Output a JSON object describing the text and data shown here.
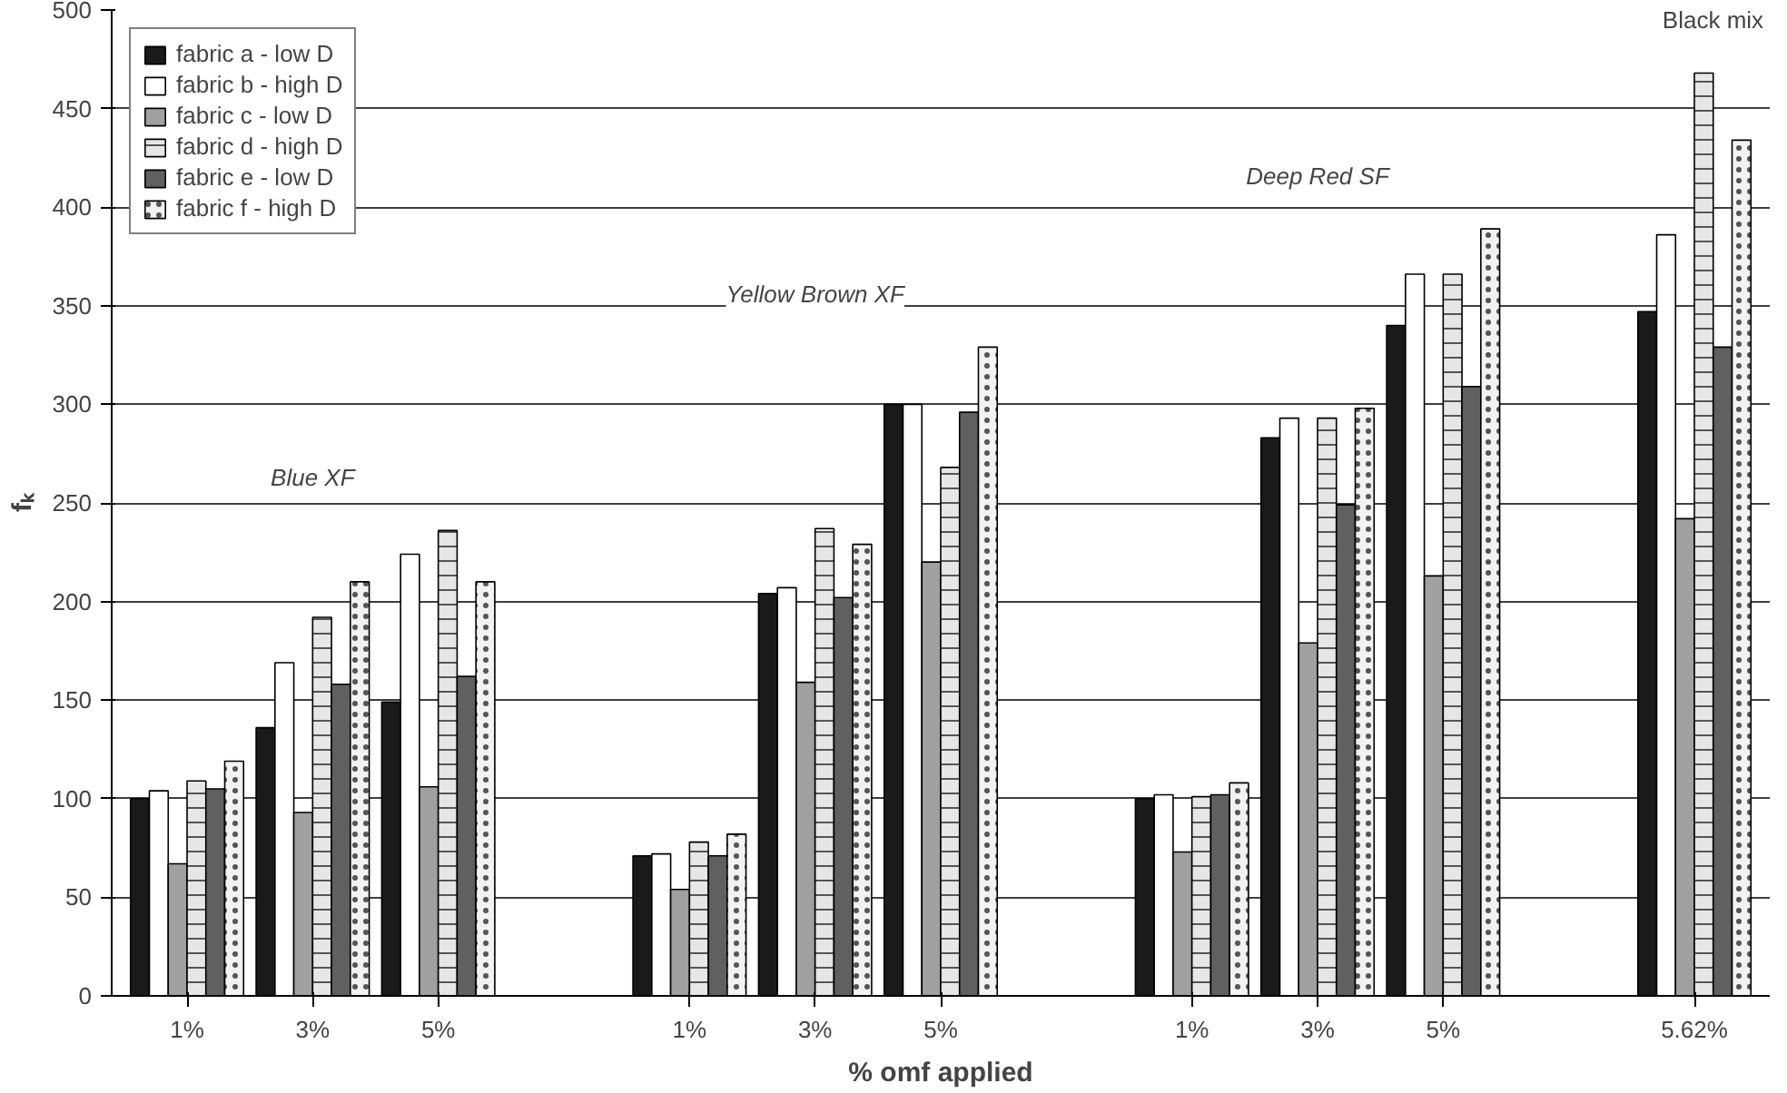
{
  "chart_data": {
    "type": "bar",
    "xlabel": "% omf applied",
    "ylabel": "fₖ",
    "categories": [
      "1%",
      "3%",
      "5%",
      null,
      "1%",
      "3%",
      "5%",
      null,
      "1%",
      "3%",
      "5%",
      null,
      "5.62%"
    ],
    "series": [
      {
        "name": "fabric a - low D",
        "color": "#1a1a1a",
        "values": [
          100,
          136,
          149,
          null,
          71,
          204,
          300,
          null,
          100,
          283,
          340,
          null,
          347
        ]
      },
      {
        "name": "fabric b - high D",
        "color": "#ffffff",
        "values": [
          104,
          169,
          224,
          null,
          72,
          207,
          300,
          null,
          102,
          293,
          366,
          null,
          386
        ]
      },
      {
        "name": "fabric c - low D",
        "color": "#a0a0a0",
        "values": [
          67,
          93,
          106,
          null,
          54,
          159,
          220,
          null,
          73,
          179,
          213,
          null,
          242
        ]
      },
      {
        "name": "fabric d - high D",
        "color": "#e6e6e6",
        "values": [
          109,
          192,
          236,
          null,
          78,
          237,
          268,
          null,
          101,
          293,
          366,
          null,
          468
        ]
      },
      {
        "name": "fabric e - low D",
        "color": "#606060",
        "values": [
          105,
          158,
          162,
          null,
          71,
          202,
          296,
          null,
          102,
          249,
          309,
          null,
          329
        ]
      },
      {
        "name": "fabric f - high D",
        "color": "#f2f2f2",
        "values": [
          119,
          210,
          210,
          null,
          82,
          229,
          329,
          null,
          108,
          298,
          389,
          null,
          434
        ]
      }
    ],
    "annotations": [
      "Blue XF",
      "Yellow Brown XF",
      "Deep Red SF",
      "Black mix"
    ],
    "ylim": [
      0,
      500
    ],
    "yticks": [
      0,
      50,
      100,
      150,
      200,
      250,
      300,
      350,
      400,
      450,
      500
    ],
    "grid": "y",
    "legend": "top left"
  }
}
